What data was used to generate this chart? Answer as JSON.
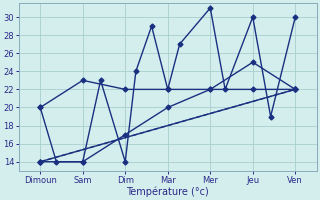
{
  "x_labels": [
    "Dimoun",
    "Sam",
    "Dim",
    "Mar",
    "Mer",
    "Jeu",
    "Ven"
  ],
  "background_color": "#d4eeed",
  "grid_color": "#a8cece",
  "line_color": "#1a3080",
  "xlabel": "Température (°c)",
  "ylim": [
    13.0,
    31.5
  ],
  "yticks": [
    14,
    16,
    18,
    20,
    22,
    24,
    26,
    28,
    30
  ],
  "xlim": [
    -0.5,
    6.5
  ],
  "xtick_positions": [
    0,
    1,
    2,
    3,
    4,
    5,
    6
  ],
  "zigzag_x": [
    0,
    0.38,
    1,
    1.42,
    2,
    2.25,
    2.62,
    3,
    3.28,
    4,
    4.35,
    5,
    5.42,
    6
  ],
  "zigzag_y": [
    20,
    14,
    14,
    23,
    14,
    24,
    29,
    22,
    27,
    31,
    22,
    30,
    19,
    30
  ],
  "trend1_x": [
    0,
    6
  ],
  "trend1_y": [
    14,
    22
  ],
  "trend2_x": [
    0,
    6
  ],
  "trend2_y": [
    14,
    22
  ],
  "trend3_x": [
    0,
    1,
    2,
    3,
    4,
    5,
    6
  ],
  "trend3_y": [
    20,
    23,
    22,
    22,
    22,
    25,
    22
  ],
  "trend4_x": [
    0,
    1,
    2,
    3,
    4,
    5,
    6
  ],
  "trend4_y": [
    14,
    14,
    17,
    20,
    22,
    22,
    22
  ],
  "lw": 1.0,
  "ms": 2.5
}
